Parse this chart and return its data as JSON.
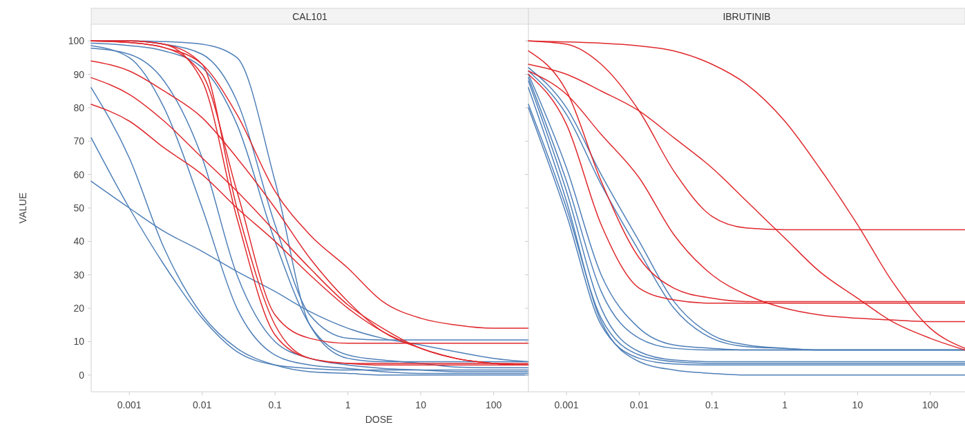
{
  "chart_data": [
    {
      "type": "line",
      "title": "CAL101",
      "xlabel": "DOSE",
      "ylabel": "VALUE",
      "log": "x",
      "grid": false,
      "x": [
        0.0003,
        0.001,
        0.003,
        0.01,
        0.03,
        0.1,
        0.3,
        1,
        3,
        10,
        30,
        100,
        300
      ],
      "xlim": [
        0.0003,
        300
      ],
      "xticks": [
        0.001,
        0.01,
        0.1,
        1,
        10,
        100
      ],
      "ylim": [
        -5,
        105
      ],
      "yticks": [
        0,
        10,
        20,
        30,
        40,
        50,
        60,
        70,
        80,
        90,
        100
      ],
      "series": [
        {
          "color": "#4e7fb8",
          "values": [
            100,
            100,
            99.8,
            99,
            95,
            58,
            15,
            5,
            4,
            4,
            4,
            4,
            4
          ]
        },
        {
          "color": "#4e7fb8",
          "values": [
            100,
            100,
            99,
            96,
            82,
            45,
            18,
            11,
            10.5,
            10.5,
            10.5,
            10.5,
            10.5
          ]
        },
        {
          "color": "#4e7fb8",
          "values": [
            99.3,
            98.6,
            97,
            92,
            75,
            40,
            15,
            6,
            4.5,
            3.5,
            2.4,
            2.2,
            2.2
          ]
        },
        {
          "color": "#4e7fb8",
          "values": [
            97.8,
            96,
            88,
            65,
            30,
            10,
            5,
            3,
            2,
            1.5,
            1,
            1,
            1
          ]
        },
        {
          "color": "#4e7fb8",
          "values": [
            98.6,
            95,
            80,
            50,
            20,
            6,
            3,
            2,
            1,
            0.5,
            0.5,
            0.5,
            0.5
          ]
        },
        {
          "color": "#4e7fb8",
          "values": [
            86,
            65,
            38,
            18,
            8,
            3,
            1,
            0.5,
            0,
            0,
            0,
            0,
            0
          ]
        },
        {
          "color": "#4e7fb8",
          "values": [
            71,
            50,
            33,
            17,
            7,
            3,
            2,
            1.5,
            1.5,
            1.5,
            1.5,
            1.5,
            1.5
          ]
        },
        {
          "color": "#4e7fb8",
          "values": [
            58,
            50,
            43,
            37,
            31,
            25,
            19,
            14,
            11,
            9,
            7,
            5,
            4
          ]
        },
        {
          "color": "#e0282c",
          "values": [
            100,
            100,
            99,
            93,
            50,
            15,
            5,
            3.5,
            3,
            3,
            3,
            3,
            3
          ]
        },
        {
          "color": "#e0282c",
          "values": [
            100,
            99.5,
            98,
            90,
            55,
            18,
            11,
            9.5,
            9.5,
            9.5,
            9.5,
            9.5,
            9.5
          ]
        },
        {
          "color": "#e0282c",
          "values": [
            100,
            100,
            99,
            88,
            47,
            12,
            5,
            3.5,
            3.5,
            3.5,
            3.5,
            3.5,
            3.5
          ]
        },
        {
          "color": "#e0282c",
          "values": [
            100,
            99.5,
            98,
            93,
            78,
            55,
            42,
            32,
            22,
            17,
            15,
            14,
            14
          ]
        },
        {
          "color": "#e0282c",
          "values": [
            94,
            91,
            85,
            77,
            65,
            50,
            35,
            22,
            13,
            8,
            5,
            3.5,
            3
          ]
        },
        {
          "color": "#e0282c",
          "values": [
            89,
            84,
            76,
            65,
            55,
            43,
            32,
            21,
            14,
            8,
            5,
            3.5,
            3
          ]
        },
        {
          "color": "#e0282c",
          "values": [
            81,
            76,
            68,
            60,
            50,
            40,
            30,
            20,
            13,
            8,
            5,
            3.5,
            3
          ]
        }
      ]
    },
    {
      "type": "line",
      "title": "IBRUTINIB",
      "log": "x",
      "grid": false,
      "tick_labels": "x",
      "x": [
        0.0003,
        0.001,
        0.003,
        0.01,
        0.03,
        0.1,
        0.3,
        1,
        3,
        10,
        30,
        100,
        300
      ],
      "xlim": [
        0.0003,
        300
      ],
      "xticks": [
        0.001,
        0.01,
        0.1,
        1,
        10,
        100
      ],
      "ylim": [
        -5,
        105
      ],
      "yticks": [
        0,
        10,
        20,
        30,
        40,
        50,
        60,
        70,
        80,
        90,
        100
      ],
      "series": [
        {
          "color": "#4e7fb8",
          "values": [
            92,
            80,
            60,
            40,
            22,
            12,
            9,
            8,
            7.5,
            7.5,
            7.5,
            7.5,
            7.5
          ]
        },
        {
          "color": "#4e7fb8",
          "values": [
            91,
            78,
            57,
            37,
            20,
            11,
            8.5,
            8,
            7.5,
            7.5,
            7.5,
            7.5,
            7.5
          ]
        },
        {
          "color": "#4e7fb8",
          "values": [
            90,
            62,
            30,
            14,
            9,
            8,
            7.5,
            7.5,
            7.5,
            7.5,
            7.5,
            7.5,
            7.5
          ]
        },
        {
          "color": "#4e7fb8",
          "values": [
            89,
            58,
            25,
            11,
            8,
            7.5,
            7.5,
            7.5,
            7.5,
            7.5,
            7.5,
            7.5,
            7.5
          ]
        },
        {
          "color": "#4e7fb8",
          "values": [
            88,
            55,
            20,
            7,
            4.5,
            4,
            4,
            4,
            4,
            4,
            4,
            4,
            4
          ]
        },
        {
          "color": "#4e7fb8",
          "values": [
            81,
            50,
            17,
            6,
            4,
            3.5,
            3.5,
            3.5,
            3.5,
            3.5,
            3.5,
            3.5,
            3.5
          ]
        },
        {
          "color": "#4e7fb8",
          "values": [
            80,
            48,
            15,
            5,
            3.3,
            3,
            3,
            3,
            3,
            3,
            3,
            3,
            3
          ]
        },
        {
          "color": "#4e7fb8",
          "values": [
            86,
            52,
            16,
            4,
            1.5,
            0.5,
            0,
            0,
            0,
            0,
            0,
            0,
            0
          ]
        },
        {
          "color": "#e0282c",
          "values": [
            100,
            99.7,
            99.3,
            98.5,
            97,
            93,
            87,
            76,
            62,
            45,
            28,
            14,
            8
          ]
        },
        {
          "color": "#e0282c",
          "values": [
            100,
            99,
            93,
            79,
            61,
            47.5,
            44,
            43.5,
            43.5,
            43.5,
            43.5,
            43.5,
            43.5
          ]
        },
        {
          "color": "#e0282c",
          "values": [
            97,
            85,
            58,
            35,
            26,
            23,
            22,
            22,
            22,
            22,
            22,
            22,
            22
          ]
        },
        {
          "color": "#e0282c",
          "values": [
            93,
            90,
            85,
            79,
            71,
            62,
            52,
            41,
            31,
            23,
            16,
            11,
            7.5
          ]
        },
        {
          "color": "#e0282c",
          "values": [
            91,
            84,
            72,
            59,
            42,
            30,
            24,
            20,
            18,
            17,
            16.5,
            16,
            16
          ]
        },
        {
          "color": "#e0282c",
          "values": [
            90,
            75,
            45,
            26,
            22.5,
            21.5,
            21.5,
            21.5,
            21.5,
            21.5,
            21.5,
            21.5,
            21.5
          ]
        }
      ]
    }
  ]
}
